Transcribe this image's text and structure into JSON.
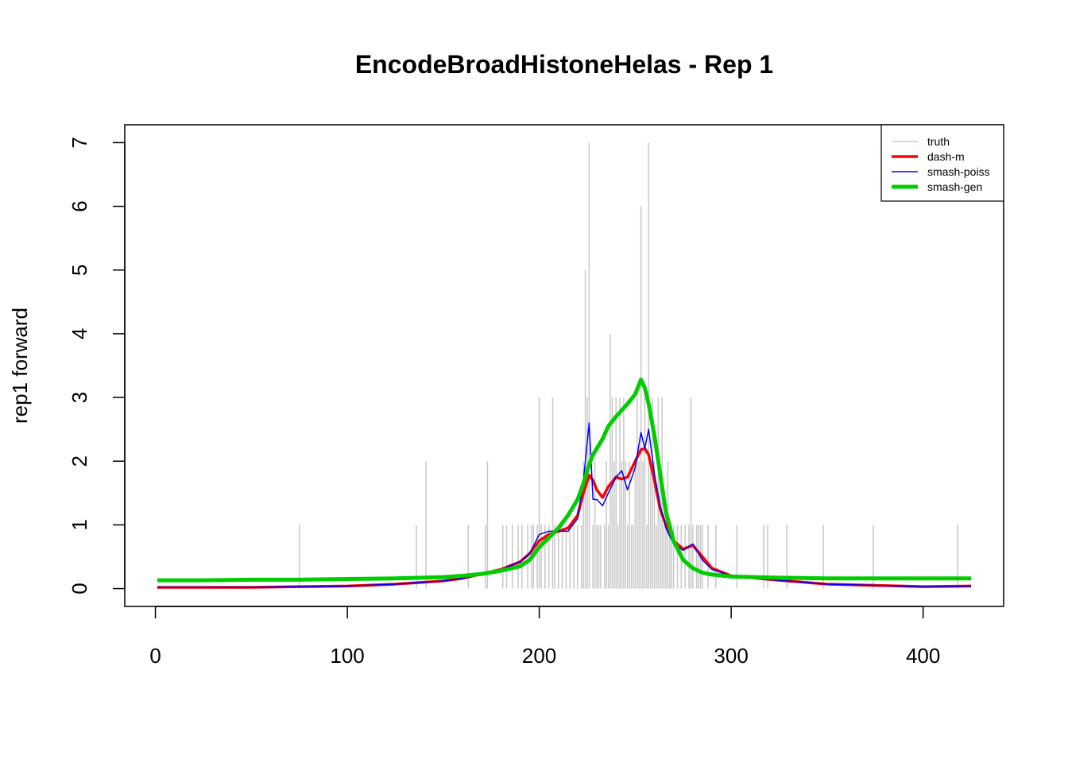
{
  "chart_data": {
    "type": "line",
    "title": "EncodeBroadHistoneHelas - Rep 1",
    "ylabel": "rep1 forward",
    "xlim": [
      -15.96,
      441.96
    ],
    "ylim": [
      -0.28,
      7.28
    ],
    "xticks": [
      0,
      100,
      200,
      300,
      400
    ],
    "yticks": [
      0,
      1,
      2,
      3,
      4,
      5,
      6,
      7
    ],
    "legend": "topright",
    "x": [
      1,
      25,
      50,
      75,
      100,
      125,
      150,
      160,
      170,
      180,
      190,
      195,
      200,
      205,
      210,
      215,
      220,
      223,
      226,
      228,
      230,
      233,
      236,
      240,
      243,
      246,
      250,
      253,
      255,
      257,
      260,
      263,
      266,
      270,
      275,
      280,
      285,
      290,
      300,
      325,
      350,
      375,
      400,
      425
    ],
    "series": [
      {
        "name": "truth",
        "color": "#c8c8c8",
        "width": 1.5,
        "style": "spikes",
        "x": [
          75,
          136,
          141,
          163,
          172,
          173,
          181,
          183,
          186,
          189,
          191,
          194,
          196,
          197,
          199,
          200,
          201,
          203,
          205,
          207,
          208,
          210,
          212,
          214,
          216,
          218,
          220,
          222,
          223,
          224,
          225,
          226,
          228,
          229,
          230,
          231,
          232,
          234,
          235,
          236,
          237,
          238,
          239,
          240,
          241,
          242,
          243,
          244,
          245,
          246,
          247,
          248,
          249,
          250,
          251,
          252,
          253,
          254,
          255,
          256,
          257,
          258,
          259,
          260,
          261,
          262,
          263,
          264,
          265,
          266,
          267,
          268,
          269,
          270,
          272,
          274,
          276,
          278,
          279,
          280,
          282,
          283,
          284,
          285,
          288,
          292,
          303,
          317,
          319,
          329,
          348,
          374,
          418
        ],
        "values": [
          1,
          1,
          2,
          1,
          1,
          2,
          1,
          1,
          1,
          1,
          1,
          1,
          1,
          1,
          1,
          3,
          1,
          1,
          1,
          3,
          1,
          1,
          1,
          1,
          1,
          1,
          1,
          1,
          2,
          5,
          3,
          7,
          1,
          2,
          1,
          1,
          1,
          1,
          2,
          1,
          4,
          3,
          2,
          3,
          1,
          3,
          2,
          3,
          2,
          1,
          2,
          1,
          1,
          2,
          3,
          2,
          6,
          2,
          3,
          1,
          7,
          2,
          3,
          2,
          1,
          3,
          2,
          3,
          1,
          1,
          2,
          1,
          1,
          1,
          1,
          1,
          1,
          1,
          3,
          1,
          1,
          1,
          1,
          1,
          1,
          1,
          1,
          1,
          1,
          1,
          1,
          1,
          1
        ]
      },
      {
        "name": "dash-m",
        "color": "#ff0000",
        "width": 3.5,
        "style": "line",
        "values": [
          0.02,
          0.02,
          0.02,
          0.03,
          0.04,
          0.07,
          0.12,
          0.16,
          0.23,
          0.3,
          0.42,
          0.55,
          0.75,
          0.85,
          0.9,
          0.95,
          1.15,
          1.5,
          1.78,
          1.7,
          1.55,
          1.43,
          1.6,
          1.75,
          1.72,
          1.75,
          2.0,
          2.18,
          2.2,
          2.1,
          1.7,
          1.25,
          1.0,
          0.75,
          0.62,
          0.68,
          0.5,
          0.32,
          0.2,
          0.13,
          0.07,
          0.05,
          0.03,
          0.04
        ]
      },
      {
        "name": "smash-poiss",
        "color": "#0000ff",
        "width": 1.5,
        "style": "line",
        "values": [
          0.02,
          0.02,
          0.02,
          0.03,
          0.04,
          0.07,
          0.12,
          0.16,
          0.23,
          0.3,
          0.42,
          0.55,
          0.85,
          0.9,
          0.9,
          0.9,
          1.1,
          1.7,
          2.6,
          1.4,
          1.4,
          1.3,
          1.5,
          1.75,
          1.85,
          1.55,
          1.9,
          2.45,
          2.2,
          2.5,
          1.8,
          1.3,
          0.95,
          0.7,
          0.6,
          0.7,
          0.45,
          0.3,
          0.2,
          0.13,
          0.07,
          0.05,
          0.03,
          0.04
        ]
      },
      {
        "name": "smash-gen",
        "color": "#00cd00",
        "width": 5,
        "style": "line",
        "values": [
          0.13,
          0.13,
          0.14,
          0.14,
          0.15,
          0.16,
          0.18,
          0.2,
          0.23,
          0.28,
          0.35,
          0.45,
          0.65,
          0.8,
          0.95,
          1.15,
          1.4,
          1.65,
          1.95,
          2.1,
          2.2,
          2.35,
          2.55,
          2.7,
          2.8,
          2.9,
          3.05,
          3.28,
          3.15,
          2.9,
          2.4,
          1.8,
          1.2,
          0.75,
          0.45,
          0.32,
          0.25,
          0.22,
          0.19,
          0.17,
          0.16,
          0.16,
          0.16,
          0.16
        ]
      }
    ]
  }
}
